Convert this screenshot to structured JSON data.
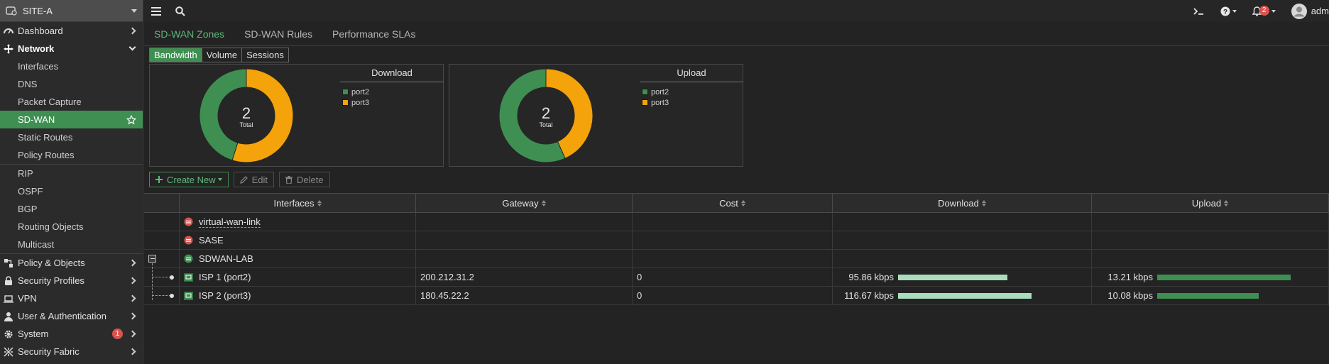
{
  "sidebar": {
    "site": "SITE-A",
    "items": [
      {
        "label": "Dashboard"
      },
      {
        "label": "Network"
      },
      {
        "label": "Interfaces"
      },
      {
        "label": "DNS"
      },
      {
        "label": "Packet Capture"
      },
      {
        "label": "SD-WAN"
      },
      {
        "label": "Static Routes"
      },
      {
        "label": "Policy Routes"
      },
      {
        "label": "RIP"
      },
      {
        "label": "OSPF"
      },
      {
        "label": "BGP"
      },
      {
        "label": "Routing Objects"
      },
      {
        "label": "Multicast"
      },
      {
        "label": "Policy & Objects"
      },
      {
        "label": "Security Profiles"
      },
      {
        "label": "VPN"
      },
      {
        "label": "User & Authentication"
      },
      {
        "label": "System",
        "badge": "1"
      },
      {
        "label": "Security Fabric"
      }
    ]
  },
  "topbar": {
    "notifications": "2",
    "user": "adm"
  },
  "tabs": [
    "SD-WAN Zones",
    "SD-WAN Rules",
    "Performance SLAs"
  ],
  "view_switch": [
    "Bandwidth",
    "Volume",
    "Sessions"
  ],
  "charts": {
    "download": {
      "title": "Download",
      "total": "2",
      "total_label": "Total"
    },
    "upload": {
      "title": "Upload",
      "total": "2",
      "total_label": "Total"
    },
    "legend": [
      "port2",
      "port3"
    ]
  },
  "colors": {
    "port2": "#3f8f52",
    "port3": "#f5a30a",
    "accent": "#3f8f52"
  },
  "chart_data": [
    {
      "type": "pie",
      "title": "Download",
      "categories": [
        "port2",
        "port3"
      ],
      "values": [
        95.86,
        116.67
      ]
    },
    {
      "type": "pie",
      "title": "Upload",
      "categories": [
        "port2",
        "port3"
      ],
      "values": [
        13.21,
        10.08
      ]
    }
  ],
  "actions": {
    "create": "Create New",
    "edit": "Edit",
    "delete": "Delete"
  },
  "table": {
    "headers": [
      "Interfaces",
      "Gateway",
      "Cost",
      "Download",
      "Upload"
    ],
    "rows": [
      {
        "name": "virtual-wan-link",
        "gateway": "",
        "cost": "",
        "download": "",
        "upload": ""
      },
      {
        "name": "SASE",
        "gateway": "",
        "cost": "",
        "download": "",
        "upload": ""
      },
      {
        "name": "SDWAN-LAB",
        "gateway": "",
        "cost": "",
        "download": "",
        "upload": ""
      },
      {
        "name": "ISP 1 (port2)",
        "gateway": "200.212.31.2",
        "cost": "0",
        "download": "95.86 kbps",
        "upload": "13.21 kbps",
        "download_value": 95.86,
        "upload_value": 13.21
      },
      {
        "name": "ISP 2 (port3)",
        "gateway": "180.45.22.2",
        "cost": "0",
        "download": "116.67 kbps",
        "upload": "10.08 kbps",
        "download_value": 116.67,
        "upload_value": 10.08
      }
    ]
  }
}
